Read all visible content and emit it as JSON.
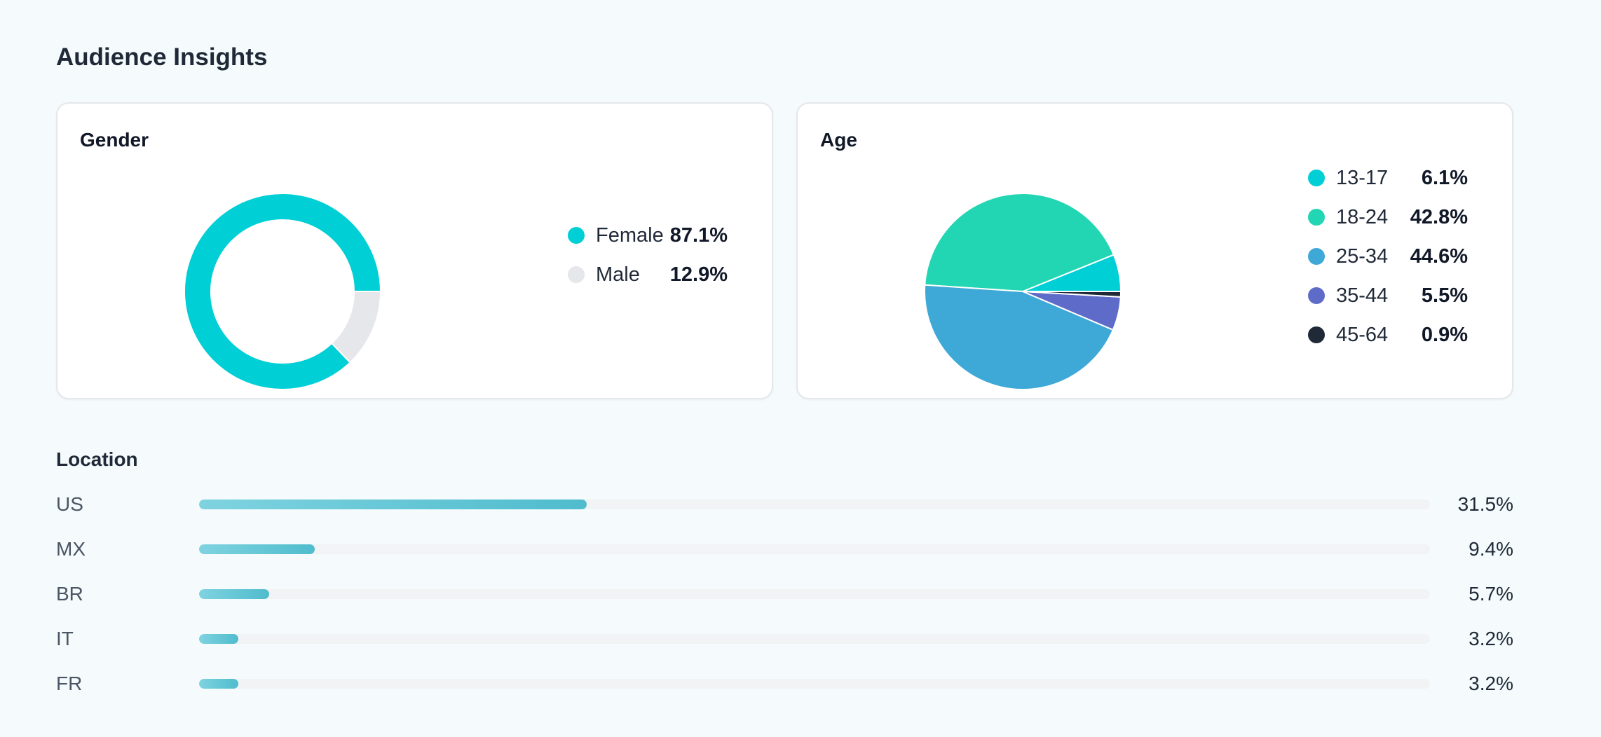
{
  "page_title": "Audience Insights",
  "gender": {
    "title": "Gender"
  },
  "age": {
    "title": "Age"
  },
  "location": {
    "title": "Location"
  },
  "chart_data": [
    {
      "type": "pie",
      "subtype": "donut",
      "title": "Gender",
      "categories": [
        "Female",
        "Male"
      ],
      "values": [
        87.1,
        12.9
      ],
      "labels": [
        "87.1%",
        "12.9%"
      ],
      "colors": [
        "#00cfd6",
        "#e5e7eb"
      ],
      "legend_position": "right"
    },
    {
      "type": "pie",
      "title": "Age",
      "categories": [
        "13-17",
        "18-24",
        "25-34",
        "35-44",
        "45-64"
      ],
      "values": [
        6.1,
        42.8,
        44.6,
        5.5,
        0.9
      ],
      "labels": [
        "6.1%",
        "42.8%",
        "44.6%",
        "5.5%",
        "0.9%"
      ],
      "colors": [
        "#00cfd6",
        "#22d6b3",
        "#3ea8d6",
        "#5e6bc8",
        "#1f2937"
      ],
      "legend_position": "right"
    },
    {
      "type": "bar",
      "orientation": "horizontal",
      "title": "Location",
      "categories": [
        "US",
        "MX",
        "BR",
        "IT",
        "FR"
      ],
      "values": [
        31.5,
        9.4,
        5.7,
        3.2,
        3.2
      ],
      "labels": [
        "31.5%",
        "9.4%",
        "5.7%",
        "3.2%",
        "3.2%"
      ],
      "xlim": [
        0,
        100
      ],
      "color": "#4fbccd"
    }
  ]
}
